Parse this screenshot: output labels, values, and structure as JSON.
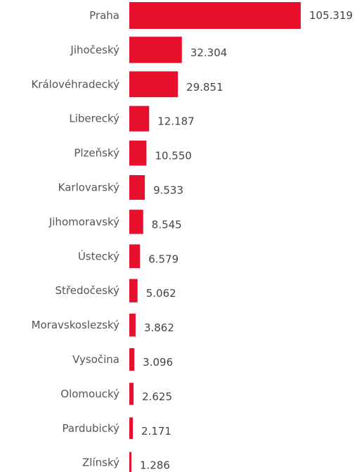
{
  "chart_data": {
    "type": "bar",
    "orientation": "horizontal",
    "categories": [
      "Praha",
      "Jihočeský",
      "Královéhradecký",
      "Liberecký",
      "Plzeňský",
      "Karlovarský",
      "Jihomoravský",
      "Ústecký",
      "Středočeský",
      "Moravskoslezský",
      "Vysočina",
      "Olomoucký",
      "Pardubický",
      "Zlínský"
    ],
    "values": [
      105319,
      32304,
      29851,
      12187,
      10550,
      9533,
      8545,
      6579,
      5062,
      3862,
      3096,
      2625,
      2171,
      1286
    ],
    "value_labels": [
      "105.319",
      "32.304",
      "29.851",
      "12.187",
      "10.550",
      "9.533",
      "8.545",
      "6.579",
      "5.062",
      "3.862",
      "3.096",
      "2.625",
      "2.171",
      "1.286"
    ],
    "title": "",
    "xlabel": "",
    "ylabel": "",
    "xlim": [
      0,
      105319
    ],
    "grid": false,
    "legend": "none",
    "bar_color": "#e8112d"
  }
}
